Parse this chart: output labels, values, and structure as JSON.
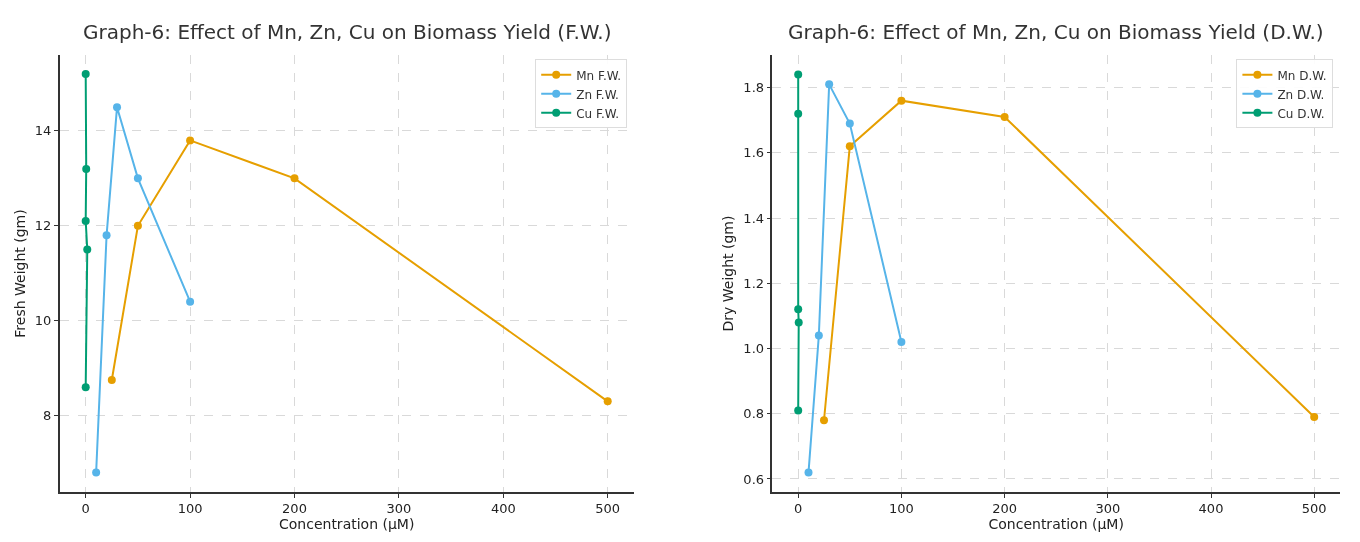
{
  "chart_data": [
    {
      "type": "line",
      "title": "Graph-6: Effect of Mn, Zn, Cu on Biomass Yield (F.W.)",
      "xlabel": "Concentration (µM)",
      "ylabel": "Fresh Weight (gm)",
      "xlim": [
        -25,
        525
      ],
      "xticks": [
        0,
        100,
        200,
        300,
        400,
        500
      ],
      "ylim": [
        6.39,
        15.6
      ],
      "yticks": [
        8,
        10,
        12,
        14
      ],
      "grid": true,
      "legend": "top right",
      "marker": "circle",
      "line_style": "solid",
      "series": [
        {
          "name": "Mn F.W.",
          "color": "#e69f00",
          "x": [
            25,
            50,
            100,
            200,
            500
          ],
          "values": [
            8.75,
            12.0,
            13.8,
            13.0,
            8.3
          ]
        },
        {
          "name": "Zn F.W.",
          "color": "#56b4e9",
          "x": [
            10,
            20,
            30,
            50,
            100
          ],
          "values": [
            6.8,
            11.8,
            14.5,
            13.0,
            10.4
          ]
        },
        {
          "name": "Cu F.W.",
          "color": "#009e73",
          "x": [
            0,
            0.5,
            0,
            1.5,
            0
          ],
          "values": [
            15.2,
            13.2,
            12.1,
            11.5,
            8.6
          ]
        }
      ]
    },
    {
      "type": "line",
      "title": "Graph-6: Effect of Mn, Zn, Cu on Biomass Yield (D.W.)",
      "xlabel": "Concentration (µM)",
      "ylabel": "Dry Weight (gm)",
      "xlim": [
        -25,
        525
      ],
      "xticks": [
        0,
        100,
        200,
        300,
        400,
        500
      ],
      "ylim": [
        0.56,
        1.9
      ],
      "yticks": [
        0.6,
        0.8,
        {
          "value": 1,
          "label": "1.0"
        },
        1.2,
        1.4,
        1.6,
        1.8
      ],
      "grid": true,
      "legend": "top right",
      "marker": "circle",
      "line_style": "solid",
      "series": [
        {
          "name": "Mn D.W.",
          "color": "#e69f00",
          "x": [
            25,
            50,
            100,
            200,
            500
          ],
          "values": [
            0.78,
            1.62,
            1.76,
            1.71,
            0.79
          ]
        },
        {
          "name": "Zn D.W.",
          "color": "#56b4e9",
          "x": [
            10,
            20,
            30,
            50,
            100
          ],
          "values": [
            0.62,
            1.04,
            1.81,
            1.69,
            1.02
          ]
        },
        {
          "name": "Cu D.W.",
          "color": "#009e73",
          "x": [
            0,
            0,
            0,
            0.5,
            0
          ],
          "values": [
            1.84,
            1.72,
            1.12,
            1.08,
            0.81
          ]
        }
      ]
    }
  ]
}
